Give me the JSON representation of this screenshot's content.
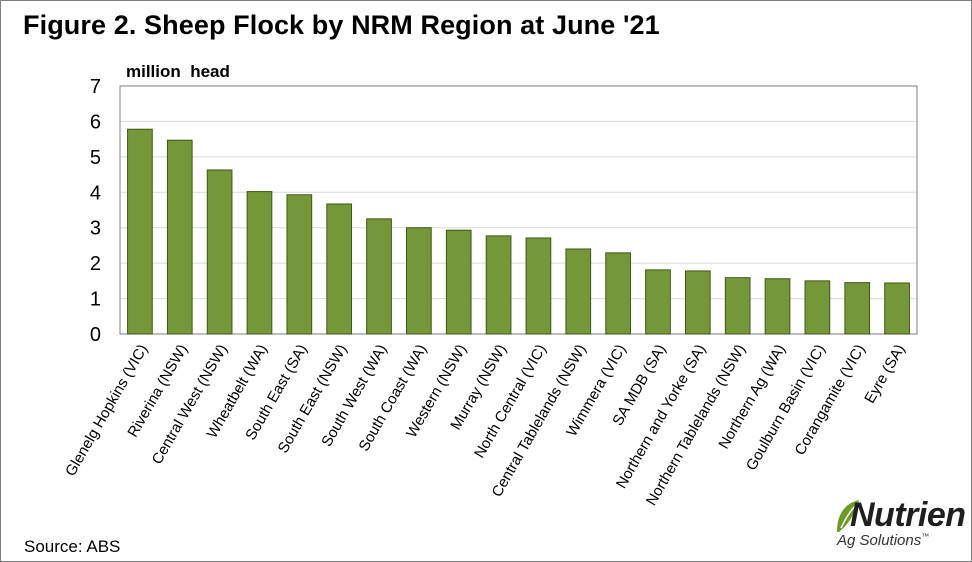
{
  "title": "Figure 2. Sheep Flock by NRM Region at June '21",
  "source": "Source: ABS",
  "logo": {
    "word": "Nutrien",
    "sub": "Ag Solutions",
    "mark": "™",
    "colors": {
      "leaf": "#6d9b2a",
      "text": "#1f1f1f"
    }
  },
  "colors": {
    "bar": "#76963a",
    "bar_edge": "#3e5a12",
    "grid": "#d9d9d9",
    "plot_border": "#7f7f7f"
  },
  "chart_data": {
    "type": "bar",
    "title": "Figure 2. Sheep Flock by NRM Region at June '21",
    "ylabel": "million  head",
    "xlabel": "",
    "ylim": [
      0,
      7
    ],
    "yticks": [
      0,
      1,
      2,
      3,
      4,
      5,
      6,
      7
    ],
    "grid": true,
    "legend": "none",
    "categories": [
      "Glenelg Hopkins (VIC)",
      "Riverina (NSW)",
      "Central West (NSW)",
      "Wheatbelt (WA)",
      "South East (SA)",
      "South East (NSW)",
      "South West (WA)",
      "South Coast (WA)",
      "Western (NSW)",
      "Murray (NSW)",
      "North Central (VIC)",
      "Central Tablelands (NSW)",
      "Wimmera (VIC)",
      "SA MDB (SA)",
      "Northern and Yorke (SA)",
      "Northern Tablelands (NSW)",
      "Northern Ag (WA)",
      "Goulburn Basin (VIC)",
      "Corangamite (VIC)",
      "Eyre (SA)"
    ],
    "values": [
      5.78,
      5.47,
      4.63,
      4.02,
      3.93,
      3.67,
      3.25,
      3.0,
      2.93,
      2.77,
      2.71,
      2.4,
      2.29,
      1.81,
      1.78,
      1.59,
      1.56,
      1.5,
      1.45,
      1.44
    ]
  }
}
